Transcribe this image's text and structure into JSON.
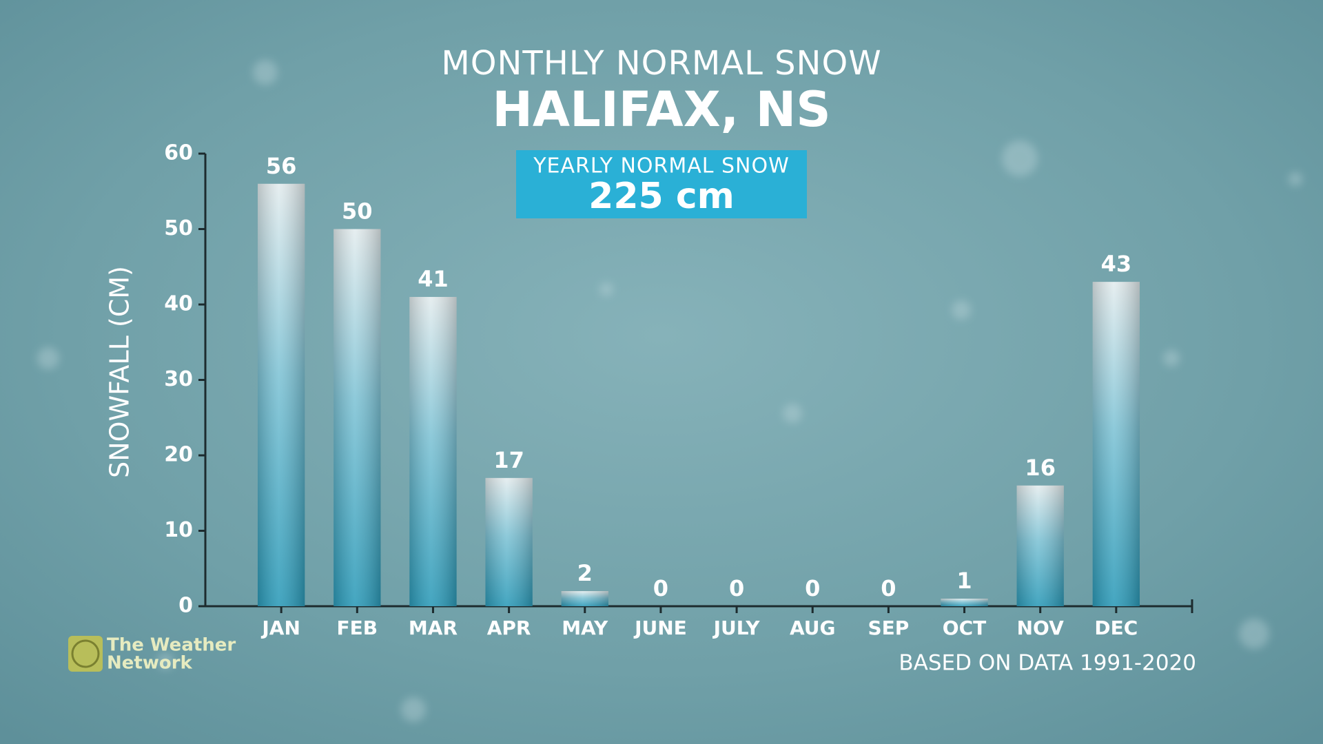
{
  "chart_data": {
    "type": "bar",
    "title": "MONTHLY NORMAL SNOW",
    "subtitle": "HALIFAX, NS",
    "annotation_label": "YEARLY NORMAL SNOW",
    "annotation_value": "225 cm",
    "y_label": "SNOWFALL (CM)",
    "note": "BASED ON DATA 1991-2020",
    "categories": [
      "JAN",
      "FEB",
      "MAR",
      "APR",
      "MAY",
      "JUNE",
      "JULY",
      "AUG",
      "SEP",
      "OCT",
      "NOV",
      "DEC"
    ],
    "values": [
      56,
      50,
      41,
      17,
      2,
      0,
      0,
      0,
      0,
      1,
      16,
      43
    ],
    "color": "#2e9fbd",
    "ylim": [
      0,
      60
    ],
    "yticks": [
      0,
      10,
      20,
      30,
      40,
      50,
      60
    ]
  },
  "logo": [
    "The Weather",
    "Network"
  ]
}
